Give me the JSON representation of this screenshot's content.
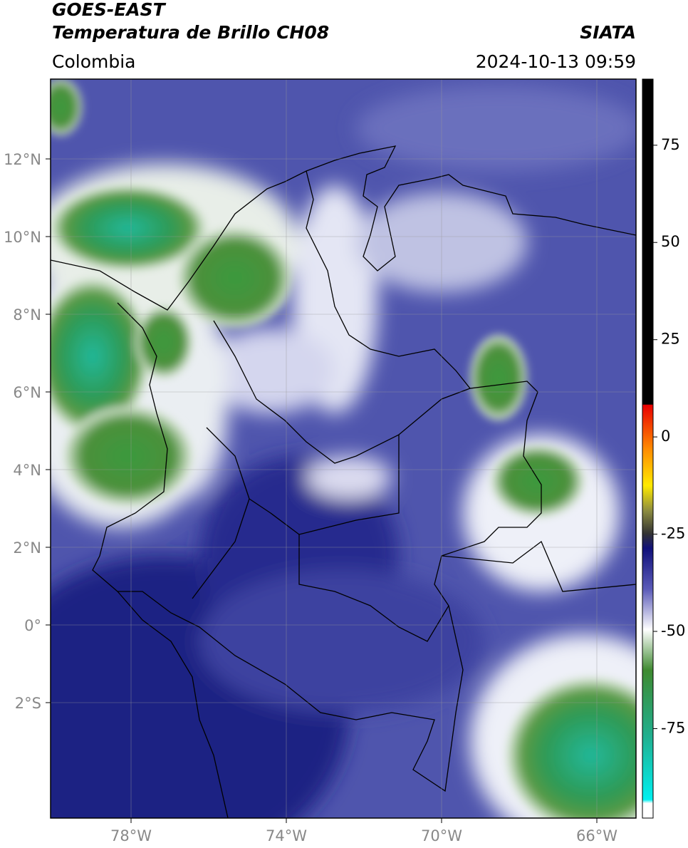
{
  "header": {
    "title": "GOES-EAST",
    "subtitle": "Temperatura de Brillo CH08",
    "source": "SIATA",
    "region": "Colombia",
    "datetime": "2024-10-13 09:59"
  },
  "map": {
    "lat_labels": [
      "12°N",
      "10°N",
      "8°N",
      "6°N",
      "4°N",
      "2°N",
      "0°",
      "2°S"
    ],
    "lon_labels": [
      "78°W",
      "74°W",
      "70°W",
      "66°W"
    ]
  },
  "colorbar": {
    "range": [
      -98,
      92
    ],
    "ticks": [
      75,
      50,
      25,
      0,
      -25,
      -50,
      -75
    ]
  }
}
